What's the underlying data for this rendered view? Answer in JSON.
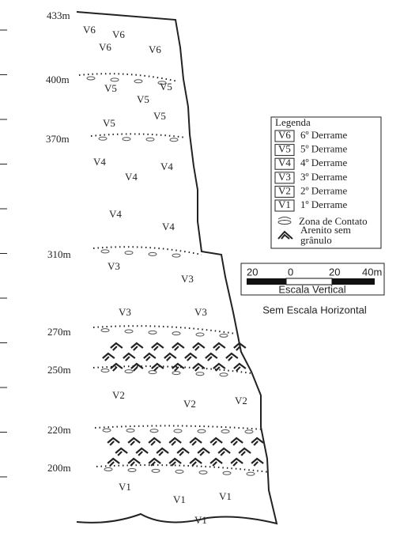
{
  "elevations": [
    "433m",
    "400m",
    "370m",
    "310m",
    "270m",
    "250m",
    "220m",
    "200m"
  ],
  "flows": {
    "v6": [
      "V6",
      "V6",
      "V6",
      "V6"
    ],
    "v5": [
      "V5",
      "V5",
      "V5",
      "V5",
      "V5"
    ],
    "v4": [
      "V4",
      "V4",
      "V4",
      "V4",
      "V4"
    ],
    "v3": [
      "V3",
      "V3",
      "V3",
      "V3"
    ],
    "v2": [
      "V2",
      "V2",
      "V2"
    ],
    "v1": [
      "V1",
      "V1",
      "V1",
      "V1"
    ]
  },
  "legend": {
    "title": "Legenda",
    "items": [
      {
        "symbol": "V6",
        "label": "6º Derrame"
      },
      {
        "symbol": "V5",
        "label": "5º Derrame"
      },
      {
        "symbol": "V4",
        "label": "4º Derrame"
      },
      {
        "symbol": "V3",
        "label": "3º Derrame"
      },
      {
        "symbol": "V2",
        "label": "2º Derrame"
      },
      {
        "symbol": "V1",
        "label": "1º Derrame"
      }
    ],
    "contact": "Zona de Contato",
    "sandstone": [
      "Arenito sem",
      "grânulo"
    ]
  },
  "scale": {
    "ticks": [
      "20",
      "0",
      "20",
      "40m"
    ],
    "title": "Escala Vertical",
    "note": "Sem Escala Horizontal"
  }
}
